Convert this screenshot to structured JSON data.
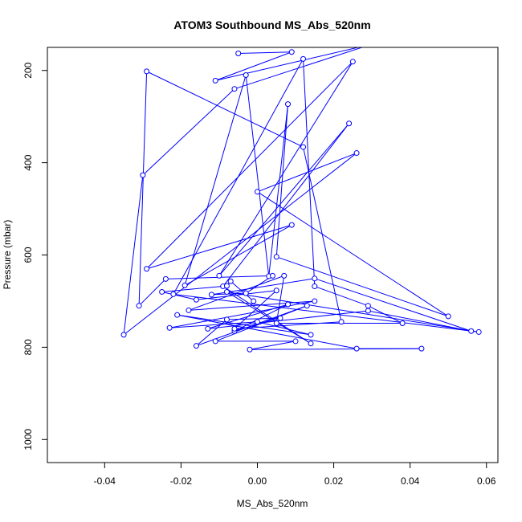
{
  "chart_data": {
    "type": "line",
    "title": "ATOM3 Southbound MS_Abs_520nm",
    "xlabel": "MS_Abs_520nm",
    "ylabel": "Pressure (mbar)",
    "xlim": [
      -0.055,
      0.063
    ],
    "ylim": [
      1050,
      150
    ],
    "y_reversed": true,
    "x_ticks": [
      -0.04,
      -0.02,
      0.0,
      0.02,
      0.04,
      0.06
    ],
    "x_tick_labels": [
      "-0.04",
      "-0.02",
      "0.00",
      "0.02",
      "0.04",
      "0.06"
    ],
    "y_ticks": [
      200,
      400,
      600,
      800,
      1000
    ],
    "y_tick_labels": [
      "200",
      "400",
      "600",
      "800",
      "1000"
    ],
    "grid": false,
    "legend": "none",
    "line_color": "#0000ff",
    "marker": "open-circle",
    "series": [
      {
        "points": [
          [
            -0.005,
            163
          ],
          [
            0.009,
            160
          ],
          [
            -0.011,
            222
          ],
          [
            0.03,
            143
          ],
          [
            -0.006,
            240
          ],
          [
            -0.03,
            427
          ],
          [
            -0.035,
            773
          ],
          [
            0.026,
            379
          ],
          [
            0.0,
            463
          ],
          [
            0.05,
            733
          ],
          [
            0.005,
            604
          ],
          [
            0.008,
            273
          ],
          [
            0.003,
            646
          ],
          [
            -0.003,
            210
          ],
          [
            -0.019,
            666
          ],
          [
            0.009,
            535
          ],
          [
            -0.029,
            630
          ],
          [
            0.025,
            181
          ],
          [
            -0.01,
            645
          ],
          [
            0.024,
            315
          ],
          [
            -0.009,
            668
          ],
          [
            0.014,
            792
          ],
          [
            -0.008,
            680
          ],
          [
            0.058,
            767
          ],
          [
            -0.022,
            685
          ],
          [
            0.012,
            175
          ],
          [
            0.015,
            668
          ],
          [
            0.029,
            710
          ],
          [
            0.038,
            748
          ],
          [
            0.005,
            748
          ],
          [
            0.007,
            645
          ],
          [
            -0.018,
            720
          ],
          [
            0.015,
            700
          ],
          [
            -0.023,
            758
          ],
          [
            0.0,
            745
          ],
          [
            0.014,
            773
          ],
          [
            -0.021,
            730
          ],
          [
            0.026,
            803
          ],
          [
            0.043,
            803
          ],
          [
            -0.002,
            805
          ],
          [
            0.01,
            787
          ],
          [
            -0.011,
            787
          ],
          [
            0.013,
            710
          ],
          [
            -0.016,
            797
          ],
          [
            -0.008,
            740
          ],
          [
            0.006,
            737
          ],
          [
            -0.006,
            765
          ],
          [
            0.008,
            707
          ],
          [
            -0.013,
            760
          ],
          [
            0.029,
            721
          ],
          [
            0.056,
            765
          ],
          [
            0.015,
            651
          ],
          [
            -0.012,
            686
          ],
          [
            -0.003,
            683
          ],
          [
            0.004,
            645
          ],
          [
            -0.024,
            652
          ],
          [
            -0.031,
            710
          ],
          [
            -0.029,
            202
          ],
          [
            0.012,
            366
          ],
          [
            0.022,
            745
          ],
          [
            -0.006,
            760
          ],
          [
            0.005,
            677
          ],
          [
            -0.016,
            697
          ],
          [
            -0.025,
            680
          ],
          [
            -0.008,
            667
          ],
          [
            -0.007,
            657
          ],
          [
            -0.001,
            700
          ]
        ]
      }
    ]
  }
}
